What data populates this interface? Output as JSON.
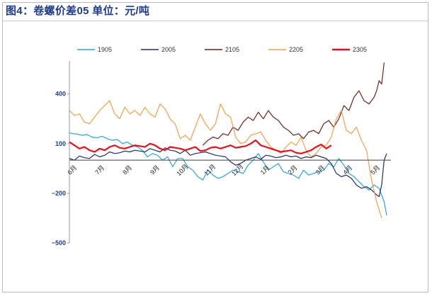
{
  "title": "图4：卷螺价差05    单位：元/吨",
  "chart_data": {
    "type": "line",
    "title": "图4：卷螺价差05    单位：元/吨",
    "xlabel": "",
    "ylabel": "",
    "ylim": [
      -500,
      600
    ],
    "yticks": [
      400,
      100,
      -200,
      -500
    ],
    "yticklabels": [
      "400",
      "100",
      "−200",
      "−500"
    ],
    "month_labels": [
      "6月",
      "7月",
      "8月",
      "9月",
      "10月",
      "11月",
      "12月",
      "1月",
      "2月",
      "3月",
      "4月",
      "5月"
    ],
    "x_units": "trading-day index from start of June",
    "series": [
      {
        "name": "1905",
        "color": "#2ea3d6",
        "width": 1.2,
        "x": [
          0,
          3,
          6,
          10,
          14,
          18,
          22,
          26,
          30,
          34,
          38,
          42,
          46,
          50,
          54,
          58,
          62,
          66,
          70,
          74,
          78,
          82,
          86,
          90,
          94,
          98,
          102,
          106,
          110,
          114,
          118,
          122,
          126,
          130,
          134,
          138,
          142,
          146,
          150,
          154,
          158,
          162,
          166,
          170,
          174,
          178,
          182,
          186,
          190,
          194,
          198,
          202,
          206,
          210,
          214,
          218,
          222,
          226,
          230,
          234,
          238,
          242,
          246,
          250,
          252
        ],
        "y": [
          165,
          160,
          158,
          150,
          155,
          140,
          135,
          145,
          130,
          120,
          125,
          100,
          110,
          90,
          80,
          60,
          20,
          40,
          30,
          0,
          20,
          -40,
          10,
          10,
          -40,
          -60,
          -100,
          -120,
          -60,
          -90,
          -110,
          -100,
          -80,
          -60,
          -70,
          -80,
          -30,
          0,
          40,
          -10,
          -60,
          -40,
          -20,
          -70,
          -80,
          -90,
          -110,
          -60,
          -90,
          -80,
          -70,
          -60,
          -20,
          -40,
          10,
          -30,
          -80,
          -100,
          -130,
          -160,
          -180,
          -150,
          -170,
          -250,
          -335
        ]
      },
      {
        "name": "2005",
        "color": "#1f2d6e",
        "width": 1.2,
        "x": [
          0,
          4,
          8,
          12,
          16,
          20,
          24,
          28,
          32,
          36,
          40,
          44,
          48,
          52,
          56,
          60,
          64,
          68,
          72,
          76,
          80,
          84,
          88,
          92,
          96,
          100,
          104,
          108,
          112,
          116,
          120,
          124,
          128,
          132,
          136,
          140,
          144,
          148,
          152,
          156,
          160,
          164,
          168,
          172,
          176,
          180,
          184,
          188,
          192,
          196,
          200,
          204,
          208,
          212,
          216,
          220,
          224,
          228,
          232,
          236,
          240,
          244,
          246,
          248,
          250,
          252
        ],
        "y": [
          10,
          0,
          25,
          15,
          10,
          35,
          20,
          30,
          50,
          40,
          45,
          55,
          50,
          60,
          55,
          50,
          70,
          60,
          50,
          75,
          60,
          55,
          40,
          60,
          30,
          40,
          45,
          50,
          40,
          30,
          25,
          20,
          -10,
          -30,
          -20,
          0,
          10,
          20,
          5,
          30,
          25,
          15,
          20,
          30,
          20,
          25,
          10,
          20,
          15,
          30,
          20,
          10,
          -20,
          -80,
          -100,
          -90,
          -110,
          -150,
          -170,
          -160,
          -180,
          -210,
          -220,
          -150,
          0,
          40
        ]
      },
      {
        "name": "2105",
        "color": "#6b2420",
        "width": 1.2,
        "x": [
          106,
          110,
          114,
          118,
          122,
          126,
          130,
          134,
          138,
          142,
          146,
          150,
          154,
          158,
          162,
          166,
          170,
          174,
          178,
          182,
          186,
          190,
          194,
          198,
          202,
          206,
          210,
          214,
          218,
          222,
          226,
          230,
          234,
          238,
          242,
          244,
          246,
          248,
          250
        ],
        "y": [
          90,
          120,
          140,
          130,
          160,
          150,
          200,
          180,
          230,
          260,
          240,
          290,
          250,
          300,
          260,
          240,
          200,
          180,
          150,
          160,
          130,
          170,
          180,
          160,
          220,
          240,
          200,
          250,
          330,
          300,
          380,
          420,
          360,
          340,
          380,
          420,
          480,
          460,
          590
        ]
      },
      {
        "name": "2205",
        "color": "#f0a049",
        "width": 1.2,
        "x": [
          0,
          4,
          8,
          12,
          16,
          20,
          24,
          28,
          32,
          36,
          40,
          44,
          48,
          52,
          56,
          60,
          64,
          68,
          72,
          76,
          80,
          84,
          88,
          92,
          96,
          100,
          104,
          108,
          112,
          116,
          120,
          124,
          128,
          132,
          136,
          140,
          144,
          148,
          152,
          156,
          160,
          164,
          168,
          172,
          176,
          180,
          184,
          188,
          192,
          196,
          200,
          204,
          208,
          212,
          216,
          220,
          224,
          228,
          232,
          236,
          240,
          244,
          248
        ],
        "y": [
          300,
          270,
          280,
          230,
          220,
          260,
          300,
          330,
          360,
          280,
          250,
          320,
          280,
          300,
          270,
          320,
          280,
          260,
          340,
          310,
          250,
          220,
          130,
          150,
          120,
          200,
          280,
          220,
          180,
          220,
          340,
          280,
          260,
          140,
          100,
          110,
          150,
          160,
          170,
          120,
          80,
          60,
          40,
          80,
          110,
          90,
          140,
          60,
          20,
          40,
          80,
          90,
          140,
          250,
          300,
          180,
          160,
          200,
          120,
          60,
          -120,
          -250,
          -350
        ]
      },
      {
        "name": "2305",
        "color": "#e3121a",
        "width": 2.2,
        "x": [
          0,
          4,
          8,
          12,
          16,
          20,
          24,
          28,
          32,
          36,
          40,
          44,
          48,
          52,
          56,
          60,
          64,
          68,
          72,
          76,
          80,
          84,
          88,
          92,
          96,
          100,
          104,
          108,
          112,
          116,
          120,
          124,
          128,
          132,
          136,
          140,
          144,
          148,
          152,
          156,
          160,
          164,
          168,
          172,
          176,
          180,
          184,
          188,
          192,
          196,
          200,
          204,
          208
        ],
        "y": [
          110,
          90,
          70,
          80,
          60,
          50,
          70,
          60,
          80,
          90,
          75,
          70,
          80,
          90,
          85,
          80,
          100,
          90,
          70,
          60,
          80,
          75,
          70,
          60,
          70,
          80,
          55,
          60,
          75,
          80,
          70,
          80,
          90,
          75,
          80,
          85,
          100,
          120,
          90,
          80,
          70,
          60,
          50,
          55,
          60,
          45,
          40,
          50,
          60,
          80,
          95,
          70,
          90
        ]
      }
    ]
  }
}
